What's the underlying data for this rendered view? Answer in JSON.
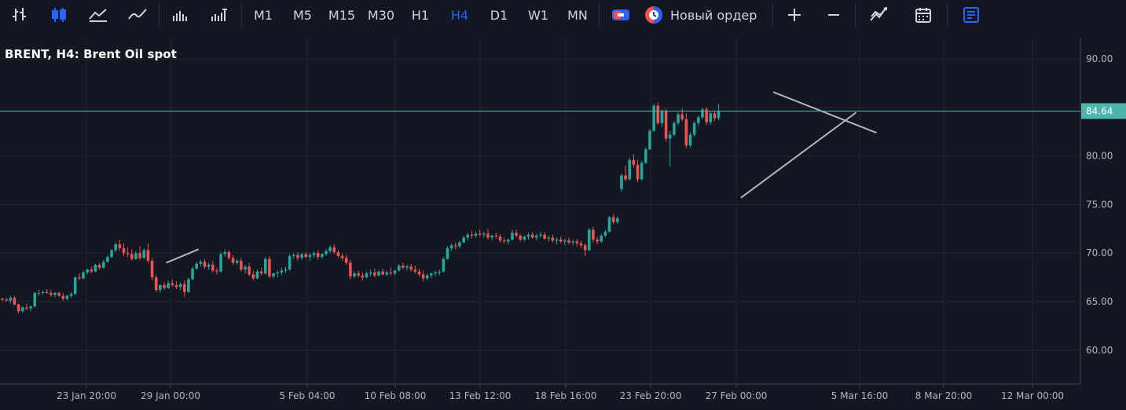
{
  "toolbar": {
    "chart_types": [
      {
        "name": "bar-chart-icon"
      },
      {
        "name": "candlestick-chart-icon"
      },
      {
        "name": "area-chart-icon"
      },
      {
        "name": "line-chart-icon"
      },
      {
        "name": "volume-bars-icon"
      },
      {
        "name": "indicator-bars-icon"
      }
    ],
    "timeframes": [
      "M1",
      "M5",
      "M15",
      "M30",
      "H1",
      "H4",
      "D1",
      "W1",
      "MN"
    ],
    "active_timeframe": "H4",
    "new_order_label": "Новый ордер",
    "tools": [
      {
        "name": "zoom-in-icon"
      },
      {
        "name": "zoom-out-icon"
      },
      {
        "name": "indicators-icon"
      },
      {
        "name": "calendar-icon"
      },
      {
        "name": "notes-icon"
      }
    ]
  },
  "chart_data": {
    "type": "candlestick",
    "title": "BRENT, H4: Brent Oil spot",
    "ylim": [
      56.5,
      92.2
    ],
    "y_ticks": [
      60,
      65,
      70,
      75,
      80,
      85,
      90
    ],
    "y_tick_labels": [
      "60.00",
      "65.00",
      "70.00",
      "75.00",
      "80.00",
      "85.00",
      "90.00"
    ],
    "x_tick_labels": [
      "23 Jan 20:00",
      "29 Jan 00:00",
      "5 Feb 04:00",
      "10 Feb 08:00",
      "13 Feb 12:00",
      "18 Feb 16:00",
      "23 Feb 20:00",
      "27 Feb 00:00",
      "5 Mar 16:00",
      "8 Mar 20:00",
      "12 Mar 00:00"
    ],
    "current_price": 84.64,
    "current_price_label": "84.64",
    "grid": true,
    "colors": {
      "up": "#26a69a",
      "down": "#ef5350",
      "price_line": "#4db6ac",
      "trendline": "#b2b5be",
      "grid": "#1f2430"
    },
    "candles": [
      [
        65.3,
        65.4,
        65.1,
        65.2
      ],
      [
        65.2,
        65.4,
        65.0,
        65.1
      ],
      [
        65.1,
        65.6,
        64.8,
        65.4
      ],
      [
        65.4,
        65.6,
        64.6,
        64.7
      ],
      [
        64.7,
        64.8,
        63.8,
        64.0
      ],
      [
        64.0,
        64.5,
        63.9,
        64.4
      ],
      [
        64.4,
        64.8,
        64.1,
        64.3
      ],
      [
        64.3,
        64.6,
        64.0,
        64.5
      ],
      [
        64.5,
        66.0,
        64.4,
        65.9
      ],
      [
        65.9,
        66.2,
        65.6,
        65.9
      ],
      [
        65.9,
        66.1,
        65.7,
        66.0
      ],
      [
        66.0,
        66.3,
        65.8,
        65.9
      ],
      [
        65.9,
        66.2,
        65.5,
        65.7
      ],
      [
        65.7,
        66.0,
        65.4,
        65.9
      ],
      [
        65.9,
        66.0,
        65.5,
        65.6
      ],
      [
        65.6,
        65.9,
        65.1,
        65.3
      ],
      [
        65.3,
        65.7,
        65.1,
        65.6
      ],
      [
        65.6,
        66.0,
        65.4,
        65.8
      ],
      [
        65.8,
        67.6,
        65.7,
        67.5
      ],
      [
        67.5,
        67.9,
        67.2,
        67.4
      ],
      [
        67.4,
        68.2,
        67.3,
        68.0
      ],
      [
        68.0,
        68.4,
        67.8,
        68.3
      ],
      [
        68.3,
        68.6,
        67.9,
        68.1
      ],
      [
        68.1,
        68.9,
        68.0,
        68.8
      ],
      [
        68.8,
        69.0,
        68.3,
        68.5
      ],
      [
        68.5,
        69.3,
        68.4,
        69.1
      ],
      [
        69.1,
        69.8,
        69.0,
        69.6
      ],
      [
        69.6,
        70.4,
        69.5,
        70.3
      ],
      [
        70.3,
        71.1,
        70.1,
        70.9
      ],
      [
        70.9,
        71.4,
        70.2,
        70.5
      ],
      [
        70.5,
        71.0,
        69.7,
        70.0
      ],
      [
        70.0,
        70.6,
        69.6,
        69.9
      ],
      [
        69.9,
        70.4,
        69.2,
        69.4
      ],
      [
        69.4,
        70.2,
        69.3,
        70.0
      ],
      [
        70.0,
        70.7,
        69.3,
        69.5
      ],
      [
        69.5,
        70.5,
        69.4,
        70.3
      ],
      [
        70.3,
        71.0,
        69.0,
        69.2
      ],
      [
        69.2,
        69.5,
        67.2,
        67.5
      ],
      [
        67.5,
        67.8,
        66.0,
        66.2
      ],
      [
        66.2,
        66.8,
        65.9,
        66.7
      ],
      [
        66.7,
        67.0,
        66.2,
        66.4
      ],
      [
        66.4,
        67.2,
        66.3,
        66.9
      ],
      [
        66.9,
        67.3,
        66.5,
        66.7
      ],
      [
        66.7,
        67.1,
        66.3,
        66.5
      ],
      [
        66.5,
        67.0,
        66.2,
        66.8
      ],
      [
        66.8,
        67.2,
        65.5,
        66.0
      ],
      [
        66.0,
        67.5,
        65.9,
        67.3
      ],
      [
        67.3,
        68.6,
        67.2,
        68.4
      ],
      [
        68.4,
        69.1,
        68.3,
        68.9
      ],
      [
        68.9,
        69.3,
        68.6,
        69.1
      ],
      [
        69.1,
        69.4,
        68.4,
        68.6
      ],
      [
        68.6,
        69.0,
        68.3,
        68.8
      ],
      [
        68.8,
        69.2,
        68.0,
        68.2
      ],
      [
        68.2,
        68.5,
        67.8,
        68.1
      ],
      [
        68.1,
        70.1,
        68.0,
        69.9
      ],
      [
        69.9,
        70.4,
        69.6,
        70.1
      ],
      [
        70.1,
        70.3,
        69.3,
        69.5
      ],
      [
        69.5,
        69.8,
        68.8,
        69.0
      ],
      [
        69.0,
        69.4,
        68.8,
        69.2
      ],
      [
        69.2,
        69.5,
        68.1,
        68.3
      ],
      [
        68.3,
        68.8,
        67.9,
        68.6
      ],
      [
        68.6,
        69.0,
        67.6,
        67.8
      ],
      [
        67.8,
        68.2,
        67.2,
        67.4
      ],
      [
        67.4,
        68.3,
        67.3,
        68.1
      ],
      [
        68.1,
        68.5,
        67.7,
        67.9
      ],
      [
        67.9,
        69.6,
        67.8,
        69.4
      ],
      [
        69.4,
        69.7,
        67.4,
        67.6
      ],
      [
        67.6,
        68.0,
        67.4,
        67.9
      ],
      [
        67.9,
        68.2,
        67.5,
        68.0
      ],
      [
        68.0,
        68.5,
        67.7,
        68.2
      ],
      [
        68.2,
        68.6,
        67.9,
        68.3
      ],
      [
        68.3,
        69.9,
        68.2,
        69.7
      ],
      [
        69.7,
        70.0,
        69.4,
        69.8
      ],
      [
        69.8,
        70.1,
        69.2,
        69.5
      ],
      [
        69.5,
        70.0,
        69.3,
        69.9
      ],
      [
        69.9,
        70.1,
        69.5,
        69.6
      ],
      [
        69.6,
        70.0,
        69.2,
        69.8
      ],
      [
        69.8,
        70.2,
        69.5,
        70.0
      ],
      [
        70.0,
        70.3,
        69.3,
        69.6
      ],
      [
        69.6,
        70.0,
        69.4,
        69.9
      ],
      [
        69.9,
        70.4,
        69.7,
        70.2
      ],
      [
        70.2,
        70.8,
        70.0,
        70.6
      ],
      [
        70.6,
        70.9,
        69.9,
        70.1
      ],
      [
        70.1,
        70.3,
        69.5,
        69.7
      ],
      [
        69.7,
        70.0,
        69.2,
        69.5
      ],
      [
        69.5,
        69.8,
        68.8,
        69.0
      ],
      [
        69.0,
        69.3,
        67.3,
        67.6
      ],
      [
        67.6,
        68.1,
        67.4,
        67.9
      ],
      [
        67.9,
        68.2,
        67.5,
        67.7
      ],
      [
        67.7,
        68.0,
        67.2,
        67.5
      ],
      [
        67.5,
        68.1,
        67.4,
        67.9
      ],
      [
        67.9,
        68.3,
        67.6,
        68.0
      ],
      [
        68.0,
        68.4,
        67.5,
        67.7
      ],
      [
        67.7,
        68.2,
        67.6,
        68.1
      ],
      [
        68.1,
        68.4,
        67.7,
        67.8
      ],
      [
        67.8,
        68.2,
        67.6,
        68.0
      ],
      [
        68.0,
        68.5,
        67.7,
        67.9
      ],
      [
        67.9,
        68.3,
        67.7,
        68.2
      ],
      [
        68.2,
        68.9,
        68.1,
        68.7
      ],
      [
        68.7,
        69.0,
        68.3,
        68.5
      ],
      [
        68.5,
        68.8,
        68.2,
        68.6
      ],
      [
        68.6,
        68.9,
        68.1,
        68.3
      ],
      [
        68.3,
        68.7,
        67.9,
        68.1
      ],
      [
        68.1,
        68.4,
        67.6,
        67.8
      ],
      [
        67.8,
        68.2,
        67.1,
        67.4
      ],
      [
        67.4,
        67.9,
        67.2,
        67.7
      ],
      [
        67.7,
        68.0,
        67.4,
        67.9
      ],
      [
        67.9,
        68.2,
        67.6,
        68.0
      ],
      [
        68.0,
        68.3,
        67.7,
        68.1
      ],
      [
        68.1,
        69.6,
        68.0,
        69.4
      ],
      [
        69.4,
        70.7,
        69.3,
        70.5
      ],
      [
        70.5,
        71.0,
        70.2,
        70.8
      ],
      [
        70.8,
        71.1,
        70.4,
        70.7
      ],
      [
        70.7,
        71.3,
        70.5,
        71.1
      ],
      [
        71.1,
        71.8,
        71.0,
        71.6
      ],
      [
        71.6,
        72.1,
        71.3,
        71.9
      ],
      [
        71.9,
        72.3,
        71.5,
        71.8
      ],
      [
        71.8,
        72.2,
        71.6,
        72.0
      ],
      [
        72.0,
        72.4,
        71.7,
        71.9
      ],
      [
        71.9,
        72.2,
        71.6,
        72.0
      ],
      [
        72.0,
        72.5,
        71.4,
        71.6
      ],
      [
        71.6,
        71.9,
        71.3,
        71.8
      ],
      [
        71.8,
        72.1,
        71.5,
        71.7
      ],
      [
        71.7,
        72.0,
        71.1,
        71.3
      ],
      [
        71.3,
        71.6,
        71.0,
        71.2
      ],
      [
        71.2,
        71.5,
        70.9,
        71.4
      ],
      [
        71.4,
        72.4,
        71.3,
        72.1
      ],
      [
        72.1,
        72.4,
        71.6,
        71.8
      ],
      [
        71.8,
        72.0,
        71.2,
        71.4
      ],
      [
        71.4,
        71.8,
        71.2,
        71.7
      ],
      [
        71.7,
        72.1,
        71.4,
        71.9
      ],
      [
        71.9,
        72.2,
        71.5,
        71.6
      ],
      [
        71.6,
        72.0,
        71.3,
        71.8
      ],
      [
        71.8,
        72.2,
        71.6,
        71.9
      ],
      [
        71.9,
        72.2,
        71.4,
        71.5
      ],
      [
        71.5,
        71.8,
        71.2,
        71.6
      ],
      [
        71.6,
        71.9,
        71.1,
        71.3
      ],
      [
        71.3,
        71.6,
        70.9,
        71.4
      ],
      [
        71.4,
        71.7,
        71.0,
        71.2
      ],
      [
        71.2,
        71.5,
        70.8,
        71.3
      ],
      [
        71.3,
        71.6,
        70.9,
        71.1
      ],
      [
        71.1,
        71.4,
        70.8,
        71.2
      ],
      [
        71.2,
        71.5,
        70.7,
        71.0
      ],
      [
        71.0,
        71.3,
        70.5,
        70.8
      ],
      [
        70.8,
        71.0,
        69.7,
        70.3
      ],
      [
        70.3,
        72.6,
        70.2,
        72.4
      ],
      [
        72.4,
        72.7,
        71.1,
        71.4
      ],
      [
        71.4,
        71.7,
        70.9,
        71.2
      ],
      [
        71.2,
        72.0,
        71.0,
        71.8
      ],
      [
        71.8,
        72.4,
        71.6,
        72.2
      ],
      [
        72.2,
        73.8,
        72.1,
        73.7
      ],
      [
        73.7,
        74.0,
        73.0,
        73.2
      ],
      [
        73.2,
        73.8,
        73.0,
        73.6
      ],
      [
        76.6,
        78.2,
        76.3,
        78.0
      ],
      [
        78.0,
        79.0,
        77.4,
        77.6
      ],
      [
        77.6,
        79.8,
        77.5,
        79.6
      ],
      [
        79.6,
        80.2,
        78.8,
        79.1
      ],
      [
        79.1,
        79.6,
        77.3,
        77.6
      ],
      [
        77.6,
        79.5,
        77.5,
        79.3
      ],
      [
        79.3,
        80.9,
        79.2,
        80.7
      ],
      [
        80.7,
        82.8,
        80.6,
        82.6
      ],
      [
        82.6,
        85.4,
        82.5,
        85.2
      ],
      [
        85.2,
        85.5,
        83.2,
        83.4
      ],
      [
        83.4,
        84.8,
        83.0,
        84.6
      ],
      [
        84.6,
        84.9,
        81.5,
        81.8
      ],
      [
        81.8,
        82.6,
        78.9,
        82.2
      ],
      [
        82.2,
        83.6,
        82.0,
        83.4
      ],
      [
        83.4,
        84.5,
        83.2,
        84.3
      ],
      [
        84.3,
        84.9,
        83.6,
        83.8
      ],
      [
        83.8,
        84.4,
        80.8,
        81.1
      ],
      [
        81.1,
        82.4,
        80.9,
        82.2
      ],
      [
        82.2,
        83.6,
        82.0,
        83.4
      ],
      [
        83.4,
        84.2,
        83.1,
        84.0
      ],
      [
        84.0,
        85.0,
        83.8,
        84.8
      ],
      [
        84.8,
        85.1,
        83.2,
        83.5
      ],
      [
        83.5,
        84.6,
        83.2,
        84.4
      ],
      [
        84.4,
        84.7,
        83.6,
        83.9
      ],
      [
        83.9,
        85.4,
        83.7,
        84.64
      ]
    ],
    "candle_slots": [
      0,
      1,
      2,
      3,
      4,
      5,
      6,
      7,
      8,
      9,
      10,
      11,
      12,
      13,
      14,
      15,
      16,
      17,
      18,
      19,
      20,
      21,
      22,
      23,
      24,
      25,
      26,
      27,
      28,
      29,
      30,
      31,
      32,
      33,
      34,
      35,
      36,
      37,
      38,
      39,
      40,
      41,
      42,
      43,
      44,
      45,
      46,
      47,
      48,
      49,
      50,
      51,
      52,
      53,
      54,
      55,
      56,
      57,
      58,
      59,
      60,
      61,
      62,
      63,
      64,
      65,
      66,
      67,
      68,
      69,
      70,
      71,
      72,
      73,
      74,
      75,
      76,
      77,
      78,
      79,
      80,
      81,
      82,
      83,
      84,
      85,
      86,
      87,
      88,
      89,
      90,
      91,
      92,
      93,
      94,
      95,
      96,
      97,
      98,
      99,
      100,
      101,
      102,
      103,
      104,
      105,
      106,
      107,
      108,
      109,
      110,
      111,
      112,
      113,
      114,
      115,
      116,
      117,
      118,
      119,
      120,
      121,
      122,
      123,
      124,
      125,
      126,
      127,
      128,
      129,
      130,
      131,
      132,
      133,
      134,
      135,
      136,
      137,
      138,
      139,
      140,
      141,
      142,
      143,
      144,
      145,
      146,
      147,
      148,
      149,
      150,
      151,
      152,
      153,
      154,
      155,
      156,
      157,
      158,
      159,
      160,
      161,
      162,
      163,
      164,
      165,
      166,
      167,
      168,
      169,
      170,
      171,
      172,
      173,
      174,
      175,
      176,
      177,
      178,
      183,
      184,
      185,
      186,
      187,
      188,
      189,
      190,
      191,
      192,
      193,
      194,
      195,
      196,
      197,
      198,
      199,
      200,
      201,
      202,
      203,
      204,
      205,
      206,
      207
    ],
    "trendlines": [
      {
        "from": [
          40.5,
          69.0
        ],
        "to": [
          48.5,
          70.4
        ]
      },
      {
        "from": [
          182.5,
          75.7
        ],
        "to": [
          211,
          84.5
        ]
      },
      {
        "from": [
          190.5,
          86.6
        ],
        "to": [
          216,
          82.4
        ]
      }
    ]
  }
}
